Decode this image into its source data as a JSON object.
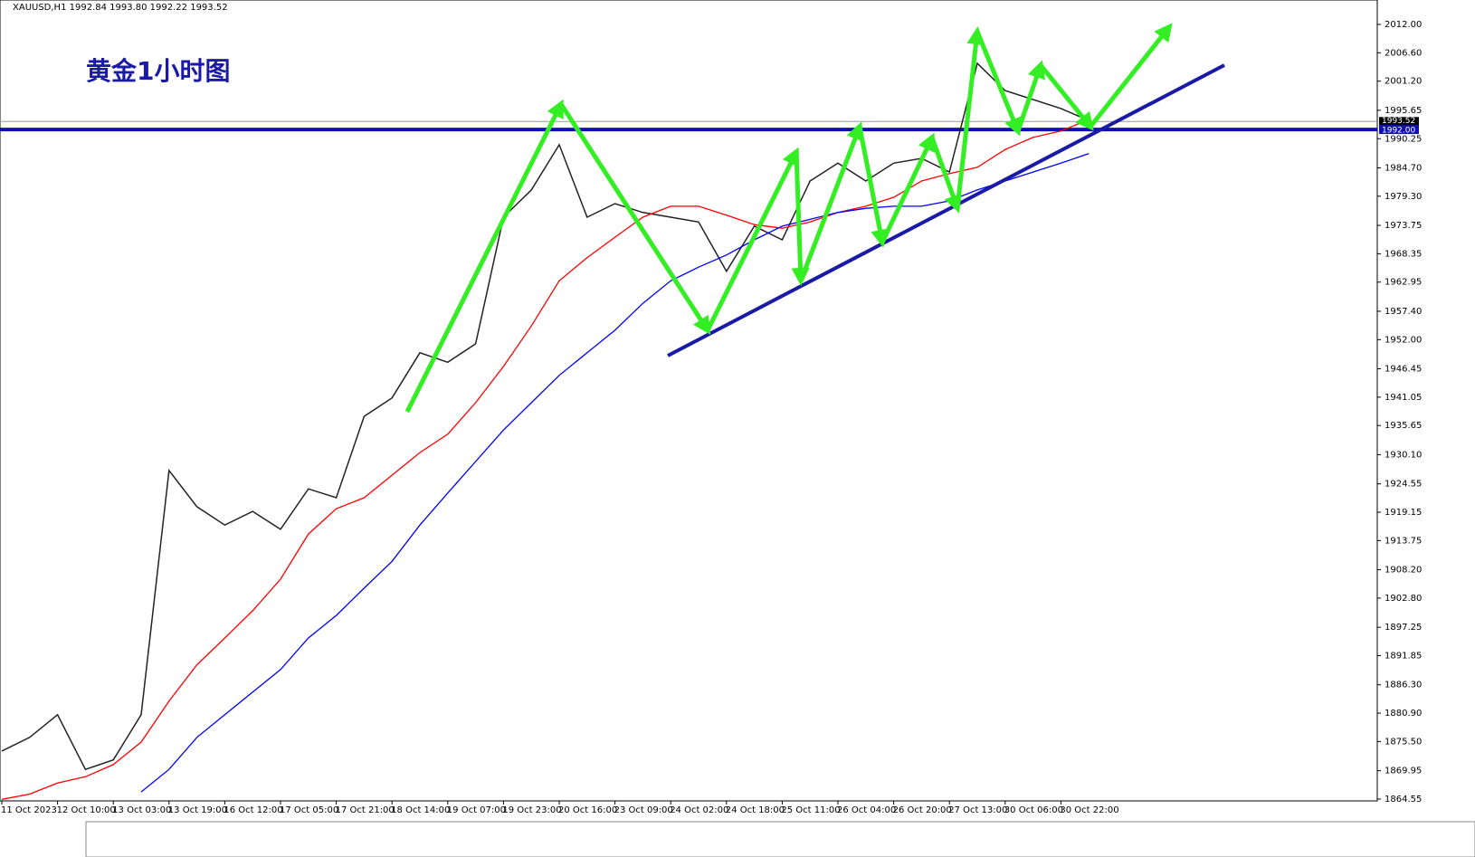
{
  "chart_data": {
    "type": "line",
    "header": "XAUUSD,H1  1992.84 1993.80 1992.22 1993.52",
    "title": "黄金1小时图",
    "categories": [
      "11 Oct 2023",
      null,
      "12 Oct 10:00",
      null,
      "13 Oct 03:00",
      null,
      "13 Oct 19:00",
      null,
      "16 Oct 12:00",
      null,
      "17 Oct 05:00",
      null,
      "17 Oct 21:00",
      null,
      "18 Oct 14:00",
      null,
      "19 Oct 07:00",
      null,
      "19 Oct 23:00",
      null,
      "20 Oct 16:00",
      null,
      "23 Oct 09:00",
      null,
      "24 Oct 02:00",
      null,
      "24 Oct 18:00",
      null,
      "25 Oct 11:00",
      null,
      "26 Oct 04:00",
      null,
      "26 Oct 20:00",
      null,
      "27 Oct 13:00",
      null,
      "30 Oct 06:00",
      null,
      "30 Oct 22:00",
      null
    ],
    "series": [
      {
        "color": "#222222",
        "values": [
          1873.7,
          1876.3,
          1880.6,
          1870.2,
          1872,
          1880.6,
          1927.1,
          1920.2,
          1916.7,
          1919.3,
          1915.9,
          1923.6,
          1921.9,
          1937.4,
          1940.9,
          1949.5,
          1947.7,
          1951.2,
          1975.3,
          1980.5,
          1989.1,
          1975.3,
          1977.9,
          1976.2,
          1975.3,
          1974.4,
          1965,
          1973.6,
          1971,
          1982.2,
          1985.6,
          1982.2,
          1985.6,
          1986.5,
          1983.9,
          2004.6,
          1999.4,
          1997.7,
          1996,
          1993.7
        ]
      },
      {
        "color": "#ff0000",
        "values": [
          1864.5,
          1865.5,
          1867.6,
          1868.8,
          1871.1,
          1875.4,
          1883.2,
          1890.1,
          1895.2,
          1900.4,
          1906.4,
          1915,
          1919.8,
          1921.9,
          1926.2,
          1930.5,
          1934,
          1940,
          1946.9,
          1954.6,
          1963.2,
          1967.6,
          1971.5,
          1975.3,
          1977.4,
          1977.4,
          1975.7,
          1973.9,
          1973.2,
          1974.4,
          1976.2,
          1977.4,
          1979.1,
          1982.2,
          1983.6,
          1984.8,
          1988.2,
          1990.5,
          1991.7,
          1993.9
        ]
      },
      {
        "color": "#0000ff",
        "values": [
          null,
          null,
          null,
          null,
          null,
          1865.9,
          1870.2,
          1876.3,
          1880.6,
          1884.9,
          1889.2,
          1895.2,
          1899.5,
          1904.7,
          1909.8,
          1916.7,
          1922.8,
          1928.8,
          1934.8,
          1940,
          1945.2,
          1949.5,
          1953.8,
          1958.9,
          1963.2,
          1965.8,
          1968.1,
          1971,
          1973.6,
          1974.9,
          1976.2,
          1977,
          1977.4,
          1977.4,
          1978.4,
          1980.5,
          1982.2,
          1983.9,
          1985.6,
          1987.4
        ]
      }
    ],
    "levels": [
      1993.52,
      {
        "value": 1992,
        "label": "1992.00"
      }
    ],
    "ylim": [
      1864.2,
      2016.65
    ],
    "yticks": [
      {
        "value": 2012,
        "label": "2012.00"
      },
      {
        "value": 2006.6,
        "label": "2006.60"
      },
      {
        "value": 2001.2,
        "label": "2001.20"
      },
      1995.65,
      {
        "value": 1990.25,
        "label": "1990.25"
      },
      {
        "value": 1984.7,
        "label": "1984.70"
      },
      {
        "value": 1979.3,
        "label": "1979.30"
      },
      1973.75,
      {
        "value": 1968.35,
        "label": "1968.35"
      },
      1962.95,
      {
        "value": 1957.4,
        "label": "1957.40"
      },
      {
        "value": 1952,
        "label": "1952.00"
      },
      1946.45,
      1941.05,
      1935.65,
      {
        "value": 1930.1,
        "label": "1930.10"
      },
      1924.55,
      1919.15,
      1913.75,
      {
        "value": 1908.2,
        "label": "1908.20"
      },
      {
        "value": 1902.8,
        "label": "1902.80"
      },
      1897.25,
      1891.85,
      {
        "value": 1886.3,
        "label": "1886.30"
      },
      {
        "value": 1880.9,
        "label": "1880.90"
      },
      {
        "value": 1875.5,
        "label": "1875.50"
      },
      1869.95,
      1864.55
    ]
  }
}
